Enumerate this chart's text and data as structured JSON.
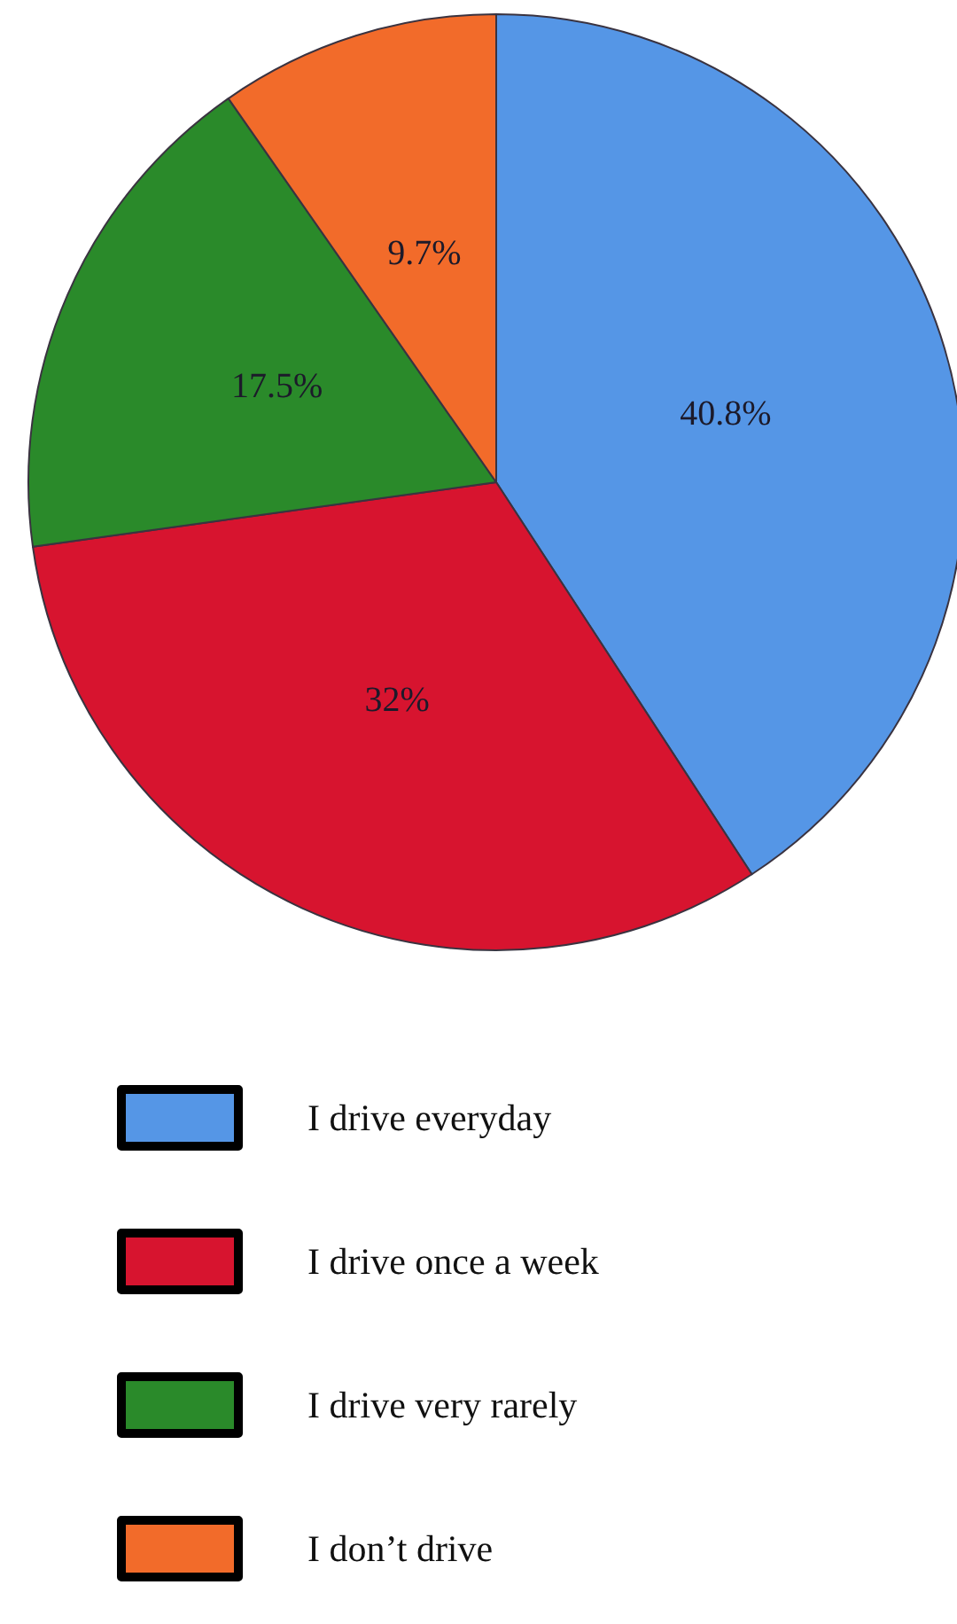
{
  "chart_data": {
    "type": "pie",
    "categories": [
      "I drive everyday",
      "I drive once a week",
      "I drive very rarely",
      "I don’t drive"
    ],
    "values": [
      40.8,
      32,
      17.5,
      9.7
    ],
    "value_labels": [
      "40.8%",
      "32%",
      "17.5%",
      "9.7%"
    ],
    "colors": [
      "#5596e6",
      "#d7142f",
      "#2a8a2a",
      "#f26b2a"
    ],
    "legend": "bottom"
  }
}
